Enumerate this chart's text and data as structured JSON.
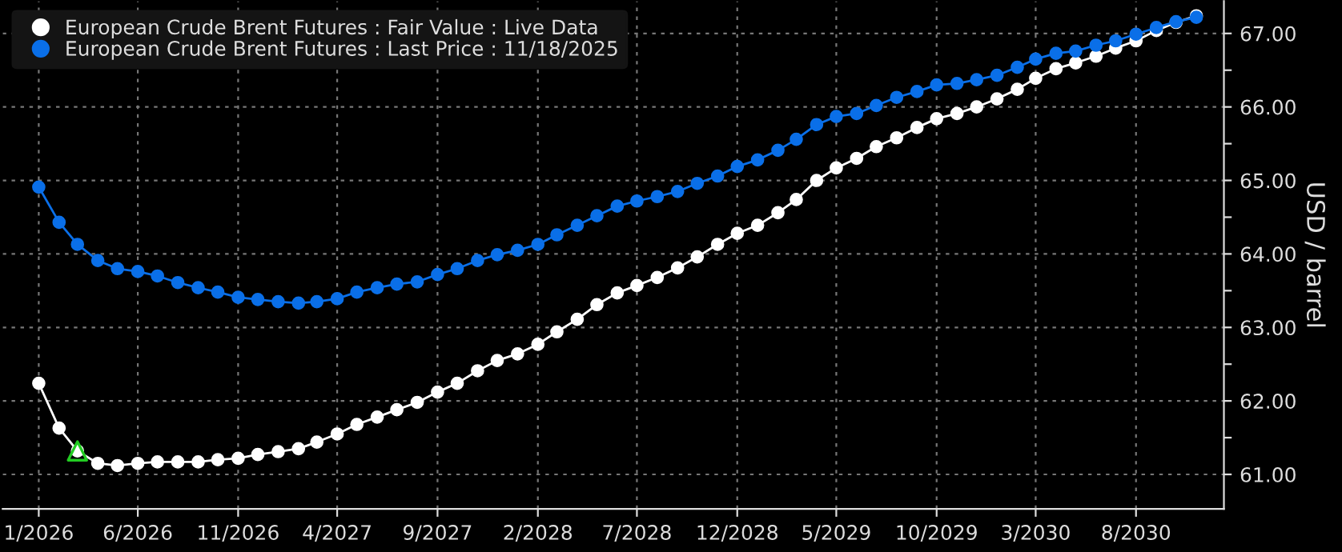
{
  "chart_data": {
    "type": "line",
    "ylabel": "USD / barrel",
    "legend": "top left",
    "grid": true,
    "marker": "circle",
    "line_style": "solid",
    "x": [
      "2026-01",
      "2026-02",
      "2026-03",
      "2026-04",
      "2026-05",
      "2026-06",
      "2026-07",
      "2026-08",
      "2026-09",
      "2026-10",
      "2026-11",
      "2026-12",
      "2027-01",
      "2027-02",
      "2027-03",
      "2027-04",
      "2027-05",
      "2027-06",
      "2027-07",
      "2027-08",
      "2027-09",
      "2027-10",
      "2027-11",
      "2027-12",
      "2028-01",
      "2028-02",
      "2028-03",
      "2028-04",
      "2028-05",
      "2028-06",
      "2028-07",
      "2028-08",
      "2028-09",
      "2028-10",
      "2028-11",
      "2028-12",
      "2029-01",
      "2029-02",
      "2029-03",
      "2029-04",
      "2029-05",
      "2029-06",
      "2029-07",
      "2029-08",
      "2029-09",
      "2029-10",
      "2029-11",
      "2029-12",
      "2030-01",
      "2030-02",
      "2030-03",
      "2030-04",
      "2030-05",
      "2030-06",
      "2030-07",
      "2030-08",
      "2030-09",
      "2030-10",
      "2030-11"
    ],
    "series": [
      {
        "name": "European Crude Brent Futures : Fair Value : Live Data",
        "color": "#ffffff",
        "values": [
          62.24,
          61.63,
          61.32,
          61.15,
          61.12,
          61.15,
          61.17,
          61.17,
          61.17,
          61.2,
          61.22,
          61.27,
          61.31,
          61.35,
          61.44,
          61.55,
          61.68,
          61.78,
          61.88,
          61.98,
          62.12,
          62.24,
          62.41,
          62.55,
          62.64,
          62.77,
          62.94,
          63.11,
          63.31,
          63.47,
          63.57,
          63.68,
          63.81,
          63.96,
          64.13,
          64.28,
          64.39,
          64.56,
          64.74,
          65.0,
          65.17,
          65.3,
          65.46,
          65.58,
          65.72,
          65.84,
          65.91,
          66.0,
          66.11,
          66.24,
          66.39,
          66.52,
          66.6,
          66.69,
          66.8,
          66.9,
          67.04,
          67.15,
          67.24
        ]
      },
      {
        "name": "European Crude Brent Futures : Last Price : 11/18/2025",
        "color": "#0a6fe8",
        "values": [
          64.91,
          64.43,
          64.13,
          63.91,
          63.8,
          63.76,
          63.7,
          63.61,
          63.54,
          63.48,
          63.41,
          63.38,
          63.35,
          63.33,
          63.35,
          63.39,
          63.48,
          63.54,
          63.59,
          63.62,
          63.72,
          63.8,
          63.91,
          63.99,
          64.05,
          64.13,
          64.26,
          64.39,
          64.52,
          64.65,
          64.72,
          64.78,
          64.85,
          64.96,
          65.06,
          65.19,
          65.28,
          65.41,
          65.56,
          65.76,
          65.87,
          65.91,
          66.02,
          66.13,
          66.21,
          66.3,
          66.32,
          66.37,
          66.43,
          66.54,
          66.65,
          66.73,
          66.76,
          66.84,
          66.9,
          66.99,
          67.08,
          67.16,
          67.22
        ]
      },
      {
        "type": "scatter",
        "marker": "triangle",
        "color": "#22cc22",
        "x": [
          "2026-03"
        ],
        "values": [
          61.32
        ]
      }
    ],
    "xlim": [
      "2025-11-07",
      "2030-12-13"
    ],
    "xticks": [
      {
        "value": "2026-01",
        "label": "1/2026"
      },
      {
        "value": "2026-06",
        "label": "6/2026"
      },
      {
        "value": "2026-11",
        "label": "11/2026"
      },
      {
        "value": "2027-04",
        "label": "4/2027"
      },
      {
        "value": "2027-09",
        "label": "9/2027"
      },
      {
        "value": "2028-02",
        "label": "2/2028"
      },
      {
        "value": "2028-07",
        "label": "7/2028"
      },
      {
        "value": "2028-12",
        "label": "12/2028"
      },
      {
        "value": "2029-05",
        "label": "5/2029"
      },
      {
        "value": "2029-10",
        "label": "10/2029"
      },
      {
        "value": "2030-03",
        "label": "3/2030"
      },
      {
        "value": "2030-08",
        "label": "8/2030"
      }
    ],
    "ylim": [
      60.53,
      67.44
    ],
    "yticks": [
      {
        "value": 61,
        "label": "61.00"
      },
      {
        "value": 61.5,
        "label": null
      },
      {
        "value": 62,
        "label": "62.00"
      },
      {
        "value": 62.5,
        "label": null
      },
      {
        "value": 63,
        "label": "63.00"
      },
      {
        "value": 63.5,
        "label": null
      },
      {
        "value": 64,
        "label": "64.00"
      },
      {
        "value": 64.5,
        "label": null
      },
      {
        "value": 65,
        "label": "65.00"
      },
      {
        "value": 65.5,
        "label": null
      },
      {
        "value": 66,
        "label": "66.00"
      },
      {
        "value": 66.5,
        "label": null
      },
      {
        "value": 67,
        "label": "67.00"
      }
    ]
  }
}
